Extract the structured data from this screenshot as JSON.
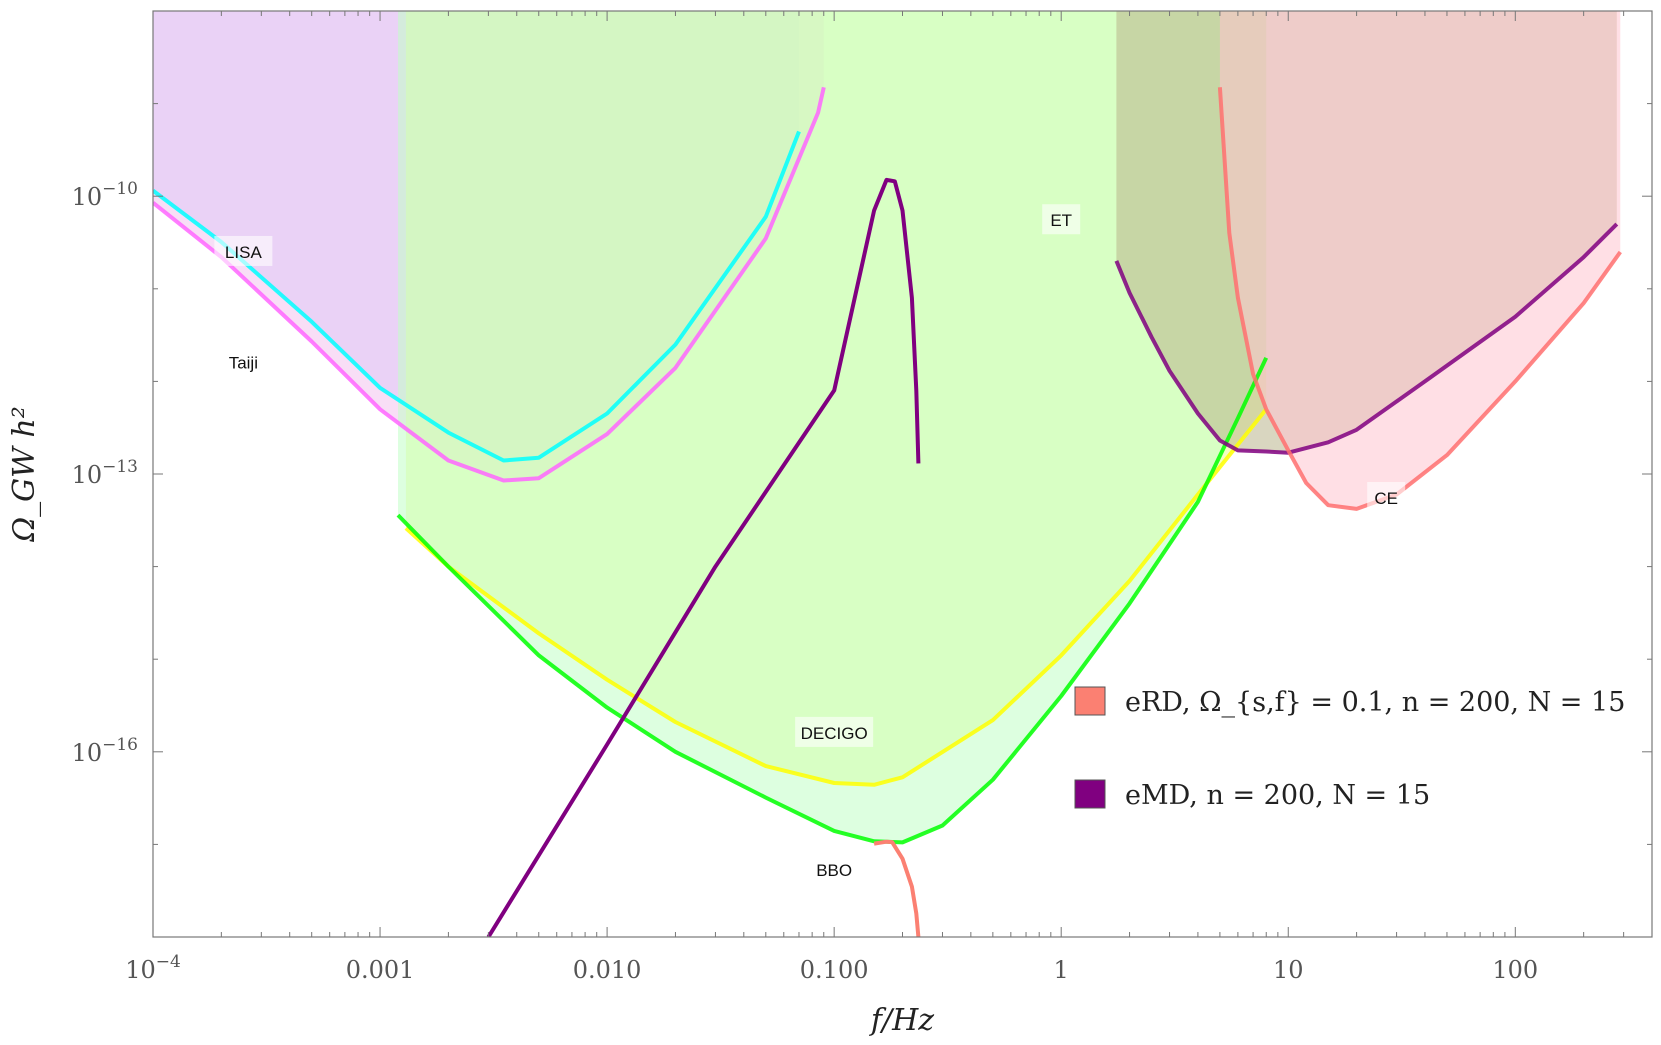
{
  "chart_data": {
    "type": "line",
    "x_scale": "log",
    "y_scale": "log",
    "xlabel": "f/Hz",
    "ylabel": "Ω_GW h²",
    "xlim": [
      0.0001,
      400
    ],
    "ylim": [
      1e-18,
      1e-08
    ],
    "x_ticks": [
      {
        "value": 0.0001,
        "label": "10",
        "sup": "−4"
      },
      {
        "value": 0.001,
        "label": "0.001"
      },
      {
        "value": 0.01,
        "label": "0.010"
      },
      {
        "value": 0.1,
        "label": "0.100"
      },
      {
        "value": 1,
        "label": "1"
      },
      {
        "value": 10,
        "label": "10"
      },
      {
        "value": 100,
        "label": "100"
      }
    ],
    "y_ticks": [
      {
        "value": 1e-10,
        "label": "10",
        "sup": "−10"
      },
      {
        "value": 1e-13,
        "label": "10",
        "sup": "−13"
      },
      {
        "value": 1e-16,
        "label": "10",
        "sup": "−16"
      }
    ],
    "detectors": [
      {
        "name": "LISA",
        "color": "#00ffff",
        "fill": "#c8cefd",
        "curve": [
          [
            0.0001,
            1.15e-10
          ],
          [
            0.0002,
            3.2e-11
          ],
          [
            0.0005,
            4.4e-12
          ],
          [
            0.001,
            8.5e-13
          ],
          [
            0.002,
            2.8e-13
          ],
          [
            0.0035,
            1.4e-13
          ],
          [
            0.005,
            1.5e-13
          ],
          [
            0.01,
            4.5e-13
          ],
          [
            0.02,
            2.5e-12
          ],
          [
            0.05,
            6e-11
          ],
          [
            0.07,
            5e-10
          ]
        ]
      },
      {
        "name": "Taiji",
        "color": "#ff66ff",
        "fill": "#f3c3ee",
        "curve": [
          [
            0.0001,
            8.5e-11
          ],
          [
            0.0002,
            2.2e-11
          ],
          [
            0.0005,
            2.7e-12
          ],
          [
            0.001,
            5e-13
          ],
          [
            0.002,
            1.4e-13
          ],
          [
            0.0035,
            8.5e-14
          ],
          [
            0.005,
            9e-14
          ],
          [
            0.01,
            2.7e-13
          ],
          [
            0.02,
            1.4e-12
          ],
          [
            0.05,
            3.5e-11
          ],
          [
            0.085,
            8e-10
          ],
          [
            0.09,
            1.5e-09
          ]
        ]
      },
      {
        "name": "DECIGO",
        "color": "#ffff00",
        "fill": "#ebff8f",
        "curve": [
          [
            0.0013,
            2.6e-14
          ],
          [
            0.002,
            1e-14
          ],
          [
            0.005,
            1.9e-15
          ],
          [
            0.01,
            6e-16
          ],
          [
            0.02,
            2.1e-16
          ],
          [
            0.05,
            7e-17
          ],
          [
            0.1,
            4.6e-17
          ],
          [
            0.15,
            4.4e-17
          ],
          [
            0.2,
            5.3e-17
          ],
          [
            0.5,
            2.2e-16
          ],
          [
            1,
            1.1e-15
          ],
          [
            2,
            7e-15
          ],
          [
            4,
            6e-14
          ],
          [
            8,
            5e-13
          ]
        ]
      },
      {
        "name": "BBO",
        "color": "#00ff00",
        "fill": "#c1ffc6",
        "curve": [
          [
            0.0012,
            3.6e-14
          ],
          [
            0.002,
            1e-14
          ],
          [
            0.005,
            1.1e-15
          ],
          [
            0.01,
            3e-16
          ],
          [
            0.02,
            1e-16
          ],
          [
            0.05,
            3.2e-17
          ],
          [
            0.1,
            1.4e-17
          ],
          [
            0.15,
            1.08e-17
          ],
          [
            0.2,
            1.05e-17
          ],
          [
            0.3,
            1.6e-17
          ],
          [
            0.5,
            5e-17
          ],
          [
            1,
            4e-16
          ],
          [
            2,
            4e-15
          ],
          [
            4,
            5e-14
          ],
          [
            6,
            4e-13
          ],
          [
            8,
            1.8e-12
          ]
        ]
      },
      {
        "name": "ET",
        "color": "#800080",
        "fill": "#b9b48c",
        "curve": [
          [
            1.75,
            2e-11
          ],
          [
            2,
            9e-12
          ],
          [
            2.5,
            3e-12
          ],
          [
            3,
            1.3e-12
          ],
          [
            4,
            4.5e-13
          ],
          [
            5,
            2.3e-13
          ],
          [
            6,
            1.8e-13
          ],
          [
            8,
            1.75e-13
          ],
          [
            10,
            1.7e-13
          ],
          [
            15,
            2.2e-13
          ],
          [
            20,
            3e-13
          ],
          [
            40,
            1e-12
          ],
          [
            100,
            5e-12
          ],
          [
            200,
            2.2e-11
          ],
          [
            280,
            5e-11
          ]
        ]
      },
      {
        "name": "CE",
        "color": "#ff7070",
        "fill": "#ffc5cf",
        "curve": [
          [
            5,
            1.5e-09
          ],
          [
            5.5,
            4e-11
          ],
          [
            6,
            8e-12
          ],
          [
            7,
            1.2e-12
          ],
          [
            8,
            5e-13
          ],
          [
            10,
            1.8e-13
          ],
          [
            12,
            8e-14
          ],
          [
            15,
            4.6e-14
          ],
          [
            20,
            4.2e-14
          ],
          [
            30,
            6e-14
          ],
          [
            50,
            1.6e-13
          ],
          [
            100,
            1e-12
          ],
          [
            200,
            7e-12
          ],
          [
            290,
            2.5e-11
          ]
        ]
      }
    ],
    "series": [
      {
        "name": "eRD, Ω_{s,f} = 0.1, n = 200, N = 15",
        "color": "#fb8072",
        "points": [
          [
            0.15,
            1.02e-17
          ],
          [
            0.17,
            1.07e-17
          ],
          [
            0.18,
            1.06e-17
          ],
          [
            0.2,
            7e-18
          ],
          [
            0.22,
            3.5e-18
          ],
          [
            0.23,
            1.8e-18
          ],
          [
            0.235,
            1e-18
          ]
        ]
      },
      {
        "name": "eMD, n = 200, N = 15",
        "color": "#800080",
        "points": [
          [
            0.003,
            1e-18
          ],
          [
            0.01,
            1.2e-16
          ],
          [
            0.03,
            1e-14
          ],
          [
            0.1,
            8e-13
          ],
          [
            0.15,
            7e-11
          ],
          [
            0.17,
            1.5e-10
          ],
          [
            0.185,
            1.45e-10
          ],
          [
            0.2,
            7e-11
          ],
          [
            0.22,
            8e-12
          ],
          [
            0.23,
            8e-13
          ],
          [
            0.235,
            1.3e-13
          ]
        ]
      }
    ],
    "labels": [
      {
        "text": "LISA",
        "x": 0.00025,
        "y": 2.5e-11
      },
      {
        "text": "Taiji",
        "x": 0.00025,
        "y": 1.6e-12
      },
      {
        "text": "ET",
        "x": 1,
        "y": 5.5e-11
      },
      {
        "text": "CE",
        "x": 27,
        "y": 5.5e-14
      },
      {
        "text": "DECIGO",
        "x": 0.1,
        "y": 1.6e-16
      },
      {
        "text": "BBO",
        "x": 0.1,
        "y": 5.3e-18
      }
    ],
    "legend": {
      "position": "lower-right",
      "entries": [
        {
          "text": "eRD, Ω_{s,f} = 0.1, n = 200, N = 15",
          "color": "#fb8072"
        },
        {
          "text": "eMD, n = 200, N = 15",
          "color": "#800080"
        }
      ]
    }
  }
}
